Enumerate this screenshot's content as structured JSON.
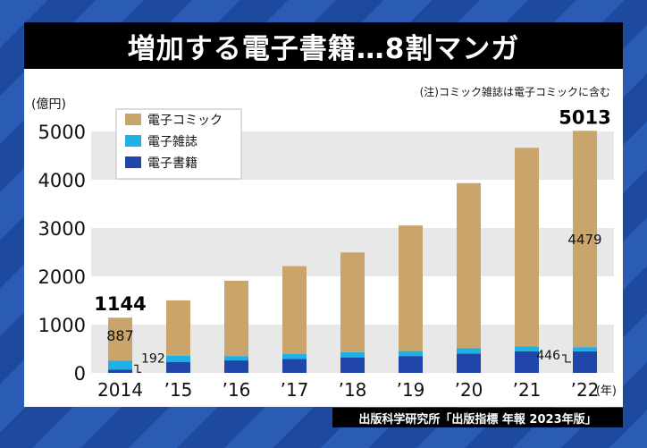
{
  "title": "増加する電子書籍…8割マンガ",
  "note": "(注)コミック雑誌は電子コミックに含む",
  "source": "出版科学研究所「出版指標 年報 2023年版」",
  "chart_data": {
    "type": "bar",
    "stacked": true,
    "ylabel": "(億円)",
    "xunit": "(年)",
    "ylim": [
      0,
      5000
    ],
    "yticks": [
      "5000",
      "4000",
      "3000",
      "2000",
      "1000",
      "0"
    ],
    "categories": [
      "2014",
      "’15",
      "’16",
      "’17",
      "’18",
      "’19",
      "’20",
      "’21",
      "’22"
    ],
    "series": [
      {
        "name": "電子書籍",
        "color": "#1f46a8",
        "values": [
          65,
          228,
          258,
          290,
          321,
          349,
          401,
          449,
          446
        ]
      },
      {
        "name": "電子雑誌",
        "color": "#1fb0e6",
        "values": [
          192,
          125,
          91,
          99,
          108,
          103,
          110,
          99,
          88
        ]
      },
      {
        "name": "電子コミック",
        "color": "#c9a46b",
        "values": [
          887,
          1149,
          1560,
          1822,
          2065,
          2601,
          3420,
          4114,
          4479
        ]
      }
    ],
    "totals": [
      1144,
      1502,
      1909,
      2211,
      2494,
      3053,
      3931,
      4662,
      5013
    ],
    "legend_order": [
      "電子コミック",
      "電子雑誌",
      "電子書籍"
    ],
    "annotations": {
      "total_2014": "1144",
      "total_2022": "5013",
      "comic_2014": "887",
      "magazine_2014": "192",
      "comic_2022": "4479",
      "book_2022": "446"
    }
  }
}
